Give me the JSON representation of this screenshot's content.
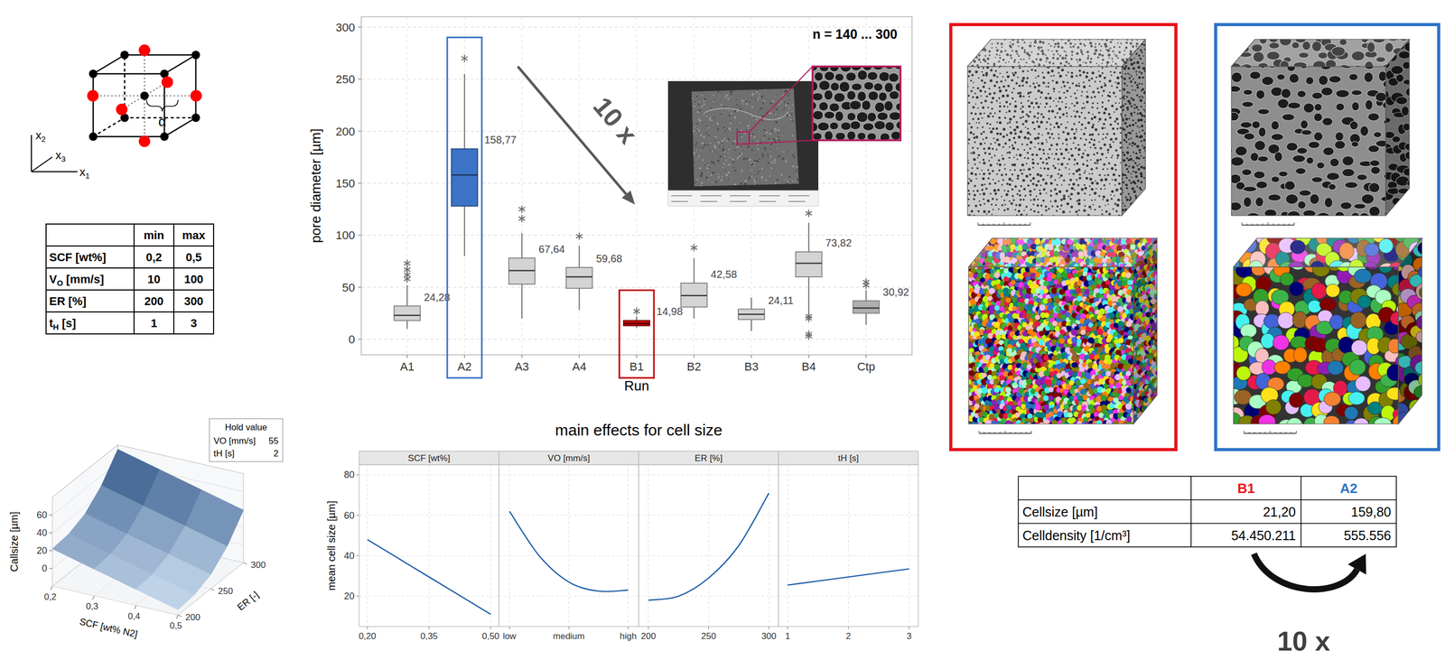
{
  "design_cube": {
    "axis_labels": [
      "x2",
      "x3",
      "x1"
    ],
    "angle_label": "α"
  },
  "parameter_table": {
    "header": [
      "min",
      "max"
    ],
    "rows": [
      {
        "symbol": "SCF",
        "unit": "[wt%]",
        "min": "0,2",
        "max": "0,5"
      },
      {
        "symbol": "V",
        "subscript": "O",
        "unit": "[mm/s]",
        "min": "10",
        "max": "100"
      },
      {
        "symbol": "ER",
        "unit": "[%]",
        "min": "200",
        "max": "300"
      },
      {
        "symbol": "t",
        "subscript": "H",
        "unit": "[s]",
        "min": "1",
        "max": "3"
      }
    ]
  },
  "chart_data": [
    {
      "type": "box",
      "x_label": "Run",
      "y_label": "pore diameter [µm]",
      "categories": [
        "A1",
        "A2",
        "A3",
        "A4",
        "B1",
        "B2",
        "B3",
        "B4",
        "Ctp"
      ],
      "whisker_low": [
        10,
        80,
        20,
        28,
        11,
        20,
        8,
        24,
        14
      ],
      "q1": [
        18,
        128,
        53,
        49,
        13,
        31,
        19,
        60,
        25
      ],
      "median": [
        23,
        158,
        66,
        60,
        15,
        42,
        24,
        73,
        30
      ],
      "q3": [
        32,
        183,
        78,
        69,
        18,
        54,
        29,
        84,
        37
      ],
      "whisker_high": [
        52,
        255,
        102,
        90,
        22,
        78,
        40,
        112,
        47
      ],
      "outliers": [
        [
          58,
          62,
          67,
          73
        ],
        [
          270
        ],
        [
          116,
          125
        ],
        [
          99
        ],
        [
          27
        ],
        [
          88
        ],
        [],
        [
          121,
          20,
          22,
          3,
          5
        ],
        [
          52,
          55
        ]
      ],
      "values": [
        24.28,
        158.77,
        67.64,
        59.68,
        14.98,
        42.58,
        24.11,
        73.82,
        30.92
      ],
      "value_labels": [
        "24,28",
        "158,77",
        "67,64",
        "59,68",
        "14,98",
        "42,58",
        "24,11",
        "73,82",
        "30,92"
      ],
      "data_labels": true,
      "colors": [
        "#d4d4d4",
        "#3b73c6",
        "#d4d4d4",
        "#d4d4d4",
        "#c00000",
        "#d4d4d4",
        "#d4d4d4",
        "#d4d4d4",
        "#b0b0b0"
      ],
      "ylim": [
        -15,
        310
      ],
      "yticks": [
        0,
        50,
        100,
        150,
        200,
        250,
        300
      ],
      "grid": true,
      "annotations": [
        "n = 140 ... 300",
        "10 x"
      ]
    },
    {
      "type": "line",
      "title": "main effects for cell size",
      "y_label": "mean cell size [µm]",
      "ylim": [
        5,
        85
      ],
      "yticks": [
        20,
        40,
        60,
        80
      ],
      "grid": true,
      "color": "#1f5ea8",
      "panels": [
        {
          "title": "SCF [wt%]",
          "x": [
            0.2,
            0.35,
            0.5
          ],
          "values": [
            48,
            29.5,
            11
          ],
          "xlim": [
            0.18,
            0.52
          ],
          "xticks": [
            {
              "value": 0.2,
              "label": "0,20"
            },
            {
              "value": 0.35,
              "label": "0,35"
            },
            {
              "value": 0.5,
              "label": "0,50"
            }
          ]
        },
        {
          "title": "VO [mm/s]",
          "x": [
            10,
            32.5,
            55,
            77.5,
            100
          ],
          "values": [
            62,
            40,
            27,
            22.5,
            23
          ],
          "xlim": [
            2,
            108
          ],
          "xticks": [
            {
              "value": 10,
              "label": "low"
            },
            {
              "value": 55,
              "label": "medium"
            },
            {
              "value": 100,
              "label": "high"
            }
          ]
        },
        {
          "title": "ER [%]",
          "x": [
            200,
            225,
            250,
            275,
            300
          ],
          "values": [
            18,
            20,
            29,
            45,
            71
          ],
          "xlim": [
            192,
            308
          ],
          "xticks": [
            200,
            250,
            300
          ]
        },
        {
          "title": "tH [s]",
          "x": [
            1,
            2,
            3
          ],
          "values": [
            25.5,
            29.5,
            33.5
          ],
          "xlim": [
            0.85,
            3.15
          ],
          "xticks": [
            1,
            2,
            3
          ]
        }
      ]
    },
    {
      "type": "surface",
      "x_label": "SCF [wt% N2]",
      "y_label": "ER [-]",
      "z_label": "Callsize [µm]",
      "x": [
        0.2,
        0.3,
        0.4,
        0.5
      ],
      "y": [
        200,
        225,
        250,
        275,
        300
      ],
      "z": [
        [
          22,
          24,
          32,
          49,
          75
        ],
        [
          10,
          12,
          20,
          37,
          63
        ],
        [
          -2,
          0,
          8,
          25,
          51
        ],
        [
          -14,
          -12,
          -4,
          13,
          39
        ]
      ],
      "xlim": [
        0.2,
        0.5
      ],
      "ylim": [
        200,
        300
      ],
      "zlim": [
        -20,
        80
      ],
      "xticks": [
        {
          "value": 0.2,
          "label": "0,2"
        },
        {
          "value": 0.3,
          "label": "0,3"
        },
        {
          "value": 0.4,
          "label": "0,4"
        },
        {
          "value": 0.5,
          "label": "0,5"
        }
      ],
      "yticks": [
        200,
        250,
        300
      ],
      "zticks": [
        0,
        20,
        40,
        60
      ],
      "hold_values": {
        "title": "Hold value",
        "rows": [
          [
            "VO [mm/s]",
            "55"
          ],
          [
            "tH [s]",
            "2"
          ]
        ]
      }
    }
  ],
  "comparison_table": {
    "columns": [
      "B1",
      "A2"
    ],
    "column_colors": [
      "#e8141c",
      "#2e75c8"
    ],
    "rows": [
      {
        "label": "Cellsize [µm]",
        "values": [
          "21,20",
          "159,80"
        ]
      },
      {
        "label": "Celldensity [1/cm³]",
        "values": [
          "54.450.211",
          "555.556"
        ]
      }
    ],
    "factor_label": "10 x"
  }
}
